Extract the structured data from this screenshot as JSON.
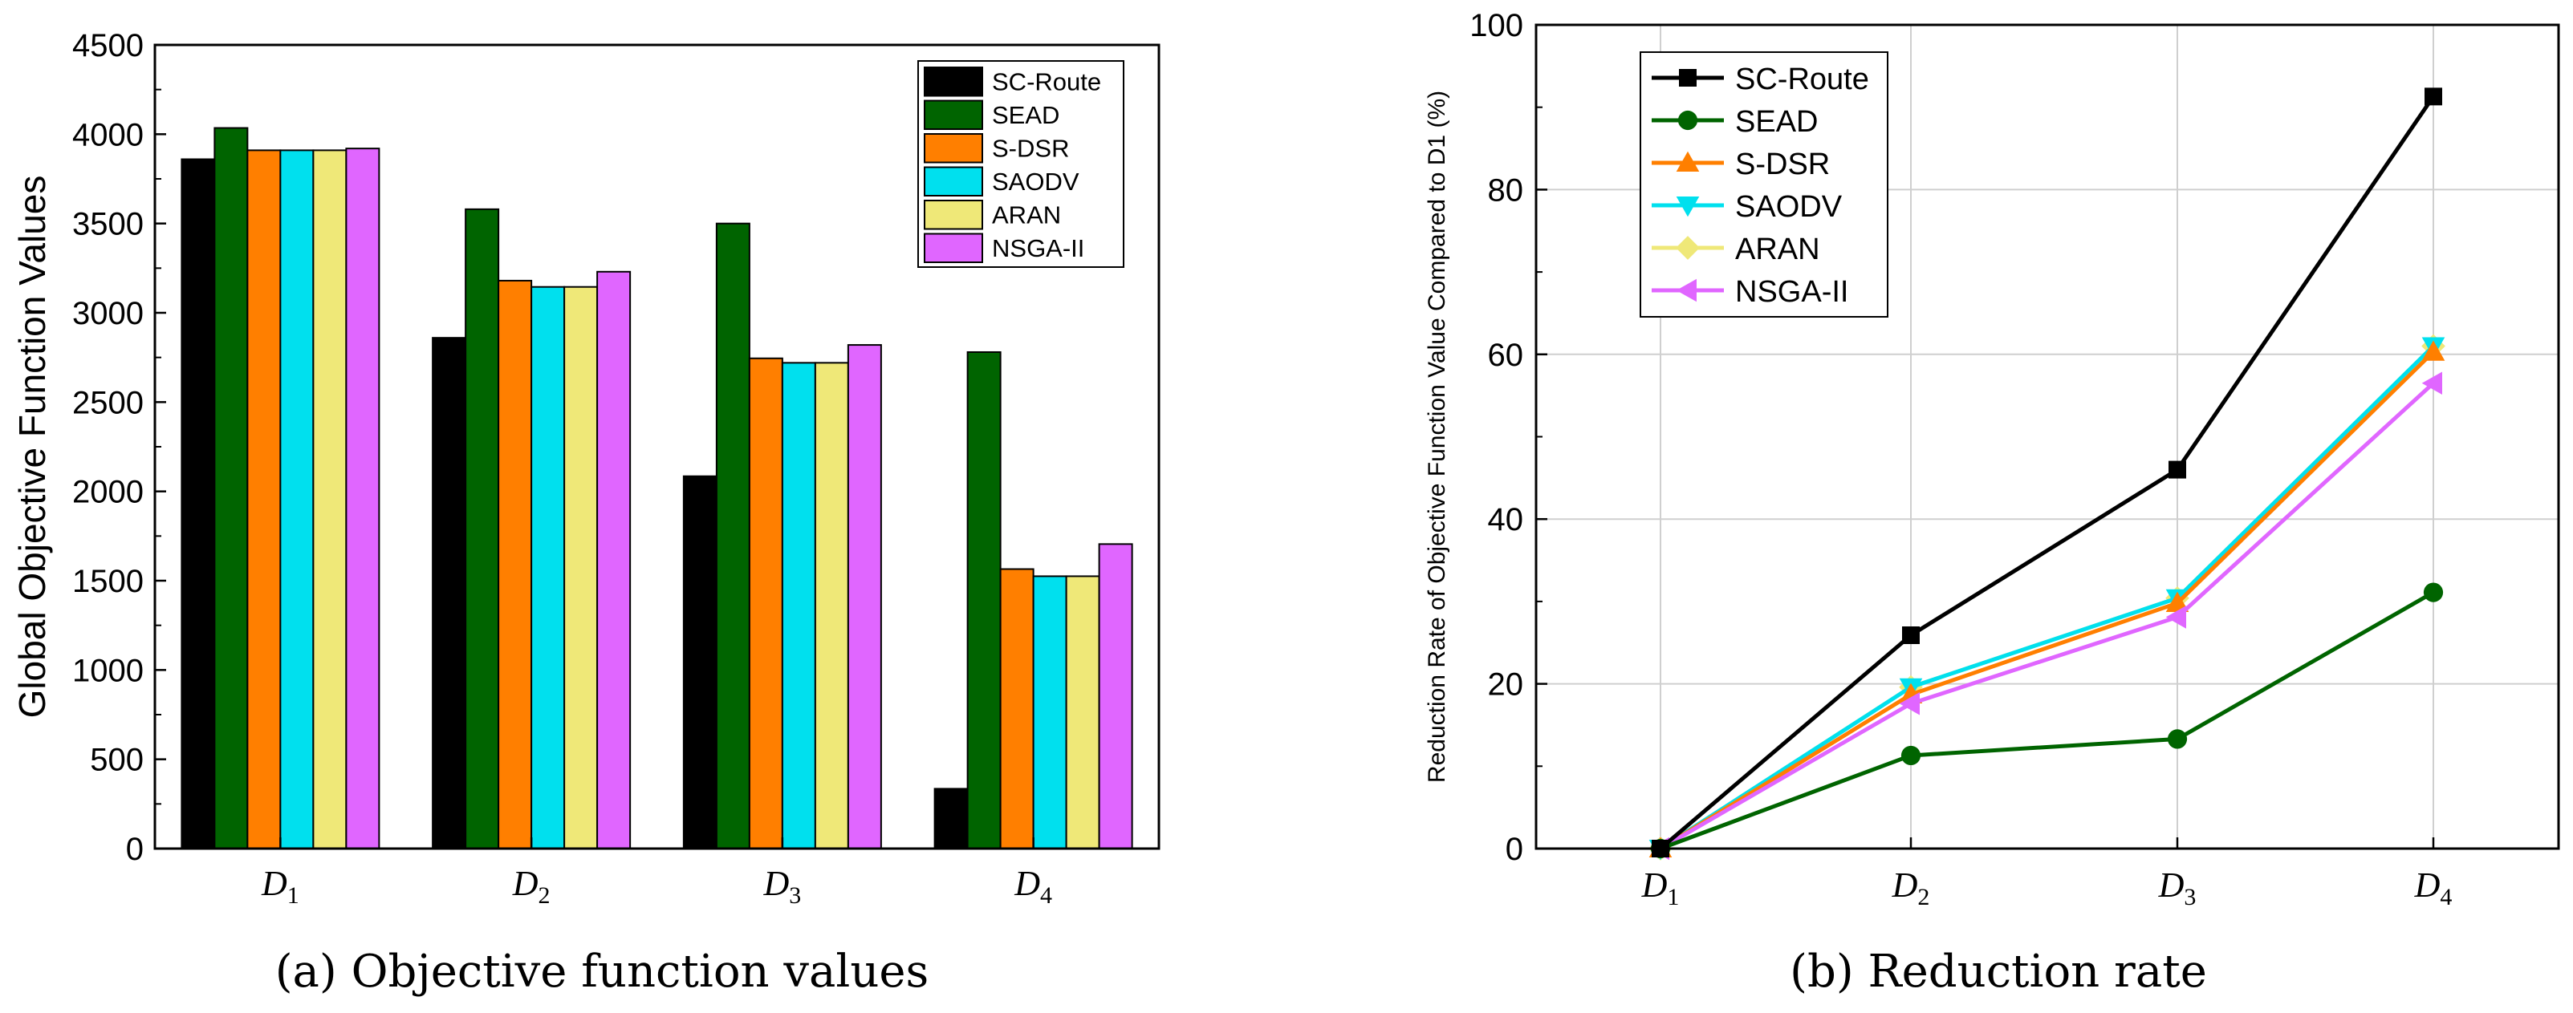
{
  "chart_data": [
    {
      "type": "bar",
      "title": "",
      "caption": "(a)  Objective function values",
      "xlabel": "",
      "ylabel": "Global Objective Function Values",
      "categories": [
        {
          "main": "D",
          "sub": "1"
        },
        {
          "main": "D",
          "sub": "2"
        },
        {
          "main": "D",
          "sub": "3"
        },
        {
          "main": "D",
          "sub": "4"
        }
      ],
      "ylim": [
        0,
        4500
      ],
      "yticks": [
        0,
        500,
        1000,
        1500,
        2000,
        2500,
        3000,
        3500,
        4000,
        4500
      ],
      "grid": false,
      "legend_position": "top-right",
      "series": [
        {
          "name": "SC-Route",
          "color": "#000000",
          "values": [
            3860,
            2860,
            2085,
            335
          ]
        },
        {
          "name": "SEAD",
          "color": "#006400",
          "values": [
            4035,
            3580,
            3500,
            2780
          ]
        },
        {
          "name": "S-DSR",
          "color": "#FF7F00",
          "values": [
            3910,
            3180,
            2745,
            1565
          ]
        },
        {
          "name": "SAODV",
          "color": "#00E0EE",
          "values": [
            3910,
            3145,
            2720,
            1525
          ]
        },
        {
          "name": "ARAN",
          "color": "#EFE878",
          "values": [
            3910,
            3145,
            2720,
            1525
          ]
        },
        {
          "name": "NSGA-II",
          "color": "#E066FF",
          "values": [
            3920,
            3230,
            2820,
            1705
          ]
        }
      ]
    },
    {
      "type": "line",
      "title": "",
      "caption": "(b)  Reduction rate",
      "xlabel": "",
      "ylabel": "Reduction Rate of Objective Function Value Compared to D1 (%)",
      "categories": [
        {
          "main": "D",
          "sub": "1"
        },
        {
          "main": "D",
          "sub": "2"
        },
        {
          "main": "D",
          "sub": "3"
        },
        {
          "main": "D",
          "sub": "4"
        }
      ],
      "ylim": [
        0,
        100
      ],
      "yticks": [
        0,
        20,
        40,
        60,
        80,
        100
      ],
      "grid": true,
      "legend_position": "top-left",
      "series": [
        {
          "name": "SC-Route",
          "color": "#000000",
          "marker": "square",
          "values": [
            0,
            25.9,
            46.0,
            91.3
          ]
        },
        {
          "name": "SEAD",
          "color": "#006400",
          "marker": "circle",
          "values": [
            0,
            11.3,
            13.3,
            31.1
          ]
        },
        {
          "name": "S-DSR",
          "color": "#FF7F00",
          "marker": "triangle-up",
          "values": [
            0,
            18.7,
            29.8,
            60.3
          ]
        },
        {
          "name": "SAODV",
          "color": "#00E0EE",
          "marker": "triangle-down",
          "values": [
            0,
            19.6,
            30.4,
            61.0
          ]
        },
        {
          "name": "ARAN",
          "color": "#EFE878",
          "marker": "diamond",
          "values": [
            0,
            19.6,
            30.4,
            61.0
          ]
        },
        {
          "name": "NSGA-II",
          "color": "#E066FF",
          "marker": "triangle-left",
          "values": [
            0,
            17.6,
            28.1,
            56.5
          ]
        }
      ]
    }
  ]
}
